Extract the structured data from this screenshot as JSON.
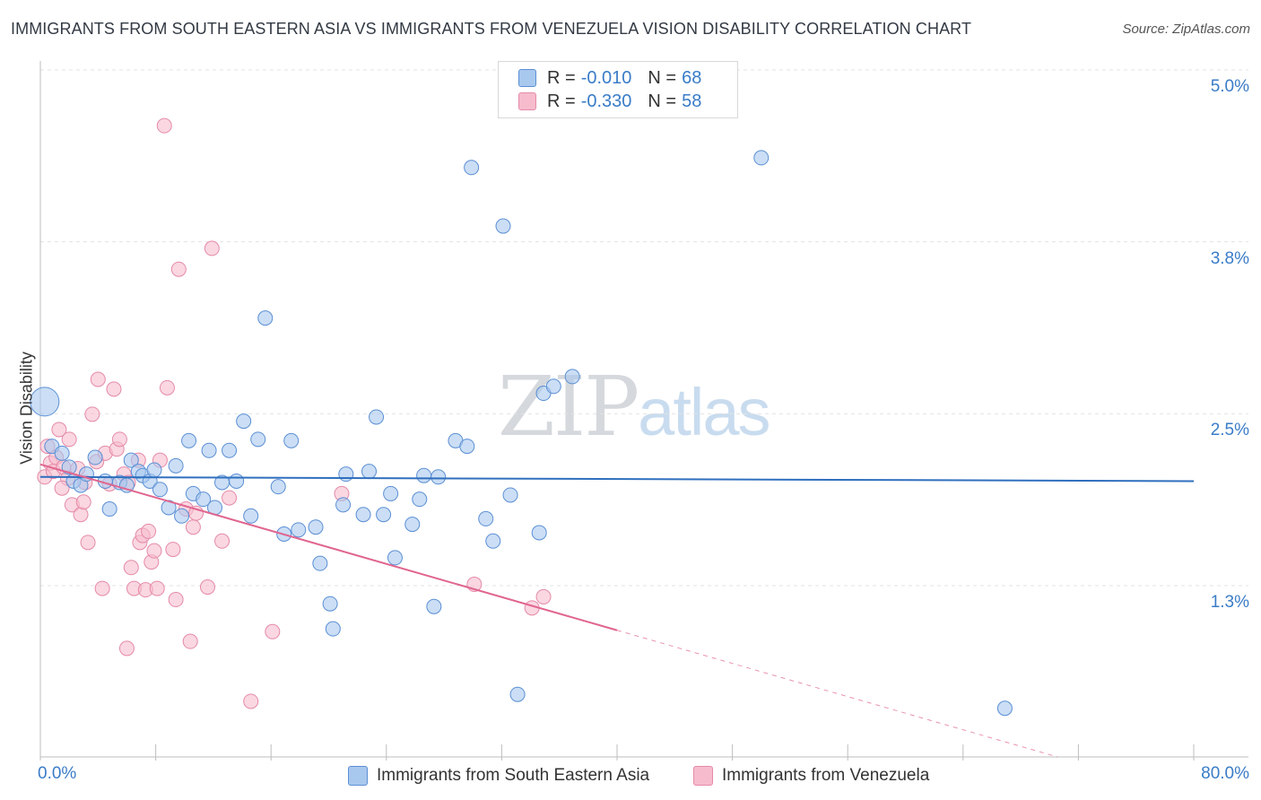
{
  "title": "IMMIGRANTS FROM SOUTH EASTERN ASIA VS IMMIGRANTS FROM VENEZUELA VISION DISABILITY CORRELATION CHART",
  "source": "Source: ZipAtlas.com",
  "watermark": {
    "zip": "ZIP",
    "atlas": "atlas"
  },
  "legend_top": [
    {
      "r_label": "R = ",
      "r_value": "-0.010",
      "n_label": "N = ",
      "n_value": "68"
    },
    {
      "r_label": "R = ",
      "r_value": "-0.330",
      "n_label": "N = ",
      "n_value": "58"
    }
  ],
  "colors": {
    "blue_fill": "#a9c8ee",
    "blue_stroke": "#5b8fd4",
    "blue_line": "#2f6fbe",
    "pink_fill": "#f6bccd",
    "pink_stroke": "#e58aa8",
    "pink_line": "#e0658f",
    "grid": "#e3e3e3",
    "tick_text": "#3a7cc7"
  },
  "chart_data": {
    "type": "scatter",
    "title": "IMMIGRANTS FROM SOUTH EASTERN ASIA VS IMMIGRANTS FROM VENEZUELA VISION DISABILITY CORRELATION CHART",
    "xlabel": "",
    "ylabel": "Vision Disability",
    "xlim": [
      0,
      80
    ],
    "ylim": [
      0.0,
      5.2
    ],
    "x_tick_labels": [
      "0.0%",
      "80.0%"
    ],
    "y_ticks": [
      1.3,
      2.5,
      3.8,
      5.0
    ],
    "y_tick_labels": [
      "1.3%",
      "2.5%",
      "3.8%",
      "5.0%"
    ],
    "grid": true,
    "legend_position": "top-center",
    "series": [
      {
        "name": "Immigrants from South Eastern Asia",
        "color": "#a9c8ee",
        "trend": {
          "x": [
            0,
            80
          ],
          "y": [
            2.08,
            2.05
          ]
        },
        "points": [
          {
            "x": 0.3,
            "y": 2.62,
            "big": true
          },
          {
            "x": 0.8,
            "y": 2.3
          },
          {
            "x": 1.5,
            "y": 2.25
          },
          {
            "x": 2.0,
            "y": 2.15
          },
          {
            "x": 2.3,
            "y": 2.05
          },
          {
            "x": 2.8,
            "y": 2.02
          },
          {
            "x": 3.2,
            "y": 2.1
          },
          {
            "x": 3.8,
            "y": 2.22
          },
          {
            "x": 4.5,
            "y": 2.05
          },
          {
            "x": 4.8,
            "y": 1.85
          },
          {
            "x": 5.5,
            "y": 2.04
          },
          {
            "x": 6.0,
            "y": 2.02
          },
          {
            "x": 6.3,
            "y": 2.2
          },
          {
            "x": 6.8,
            "y": 2.12
          },
          {
            "x": 7.1,
            "y": 2.09
          },
          {
            "x": 7.6,
            "y": 2.05
          },
          {
            "x": 7.9,
            "y": 2.13
          },
          {
            "x": 8.3,
            "y": 1.99
          },
          {
            "x": 8.9,
            "y": 1.86
          },
          {
            "x": 9.4,
            "y": 2.16
          },
          {
            "x": 9.8,
            "y": 1.8
          },
          {
            "x": 10.3,
            "y": 2.34
          },
          {
            "x": 10.6,
            "y": 1.96
          },
          {
            "x": 11.3,
            "y": 1.92
          },
          {
            "x": 11.7,
            "y": 2.27
          },
          {
            "x": 12.1,
            "y": 1.86
          },
          {
            "x": 12.6,
            "y": 2.04
          },
          {
            "x": 13.1,
            "y": 2.27
          },
          {
            "x": 13.6,
            "y": 2.05
          },
          {
            "x": 14.1,
            "y": 2.48
          },
          {
            "x": 14.6,
            "y": 1.8
          },
          {
            "x": 15.1,
            "y": 2.35
          },
          {
            "x": 15.6,
            "y": 3.22
          },
          {
            "x": 16.5,
            "y": 2.01
          },
          {
            "x": 16.9,
            "y": 1.67
          },
          {
            "x": 17.4,
            "y": 2.34
          },
          {
            "x": 17.9,
            "y": 1.7
          },
          {
            "x": 19.1,
            "y": 1.72
          },
          {
            "x": 19.4,
            "y": 1.46
          },
          {
            "x": 20.1,
            "y": 1.17
          },
          {
            "x": 20.3,
            "y": 0.99
          },
          {
            "x": 21.0,
            "y": 1.88
          },
          {
            "x": 21.2,
            "y": 2.1
          },
          {
            "x": 22.4,
            "y": 1.81
          },
          {
            "x": 22.8,
            "y": 2.12
          },
          {
            "x": 23.3,
            "y": 2.51
          },
          {
            "x": 23.8,
            "y": 1.81
          },
          {
            "x": 24.3,
            "y": 1.96
          },
          {
            "x": 24.6,
            "y": 1.5
          },
          {
            "x": 25.8,
            "y": 1.74
          },
          {
            "x": 26.3,
            "y": 1.92
          },
          {
            "x": 26.6,
            "y": 2.09
          },
          {
            "x": 27.3,
            "y": 1.15
          },
          {
            "x": 27.6,
            "y": 2.08
          },
          {
            "x": 28.8,
            "y": 2.34
          },
          {
            "x": 29.6,
            "y": 2.3
          },
          {
            "x": 29.9,
            "y": 4.3
          },
          {
            "x": 30.9,
            "y": 1.78
          },
          {
            "x": 31.4,
            "y": 1.62
          },
          {
            "x": 32.1,
            "y": 3.88
          },
          {
            "x": 32.6,
            "y": 1.95
          },
          {
            "x": 33.1,
            "y": 0.52
          },
          {
            "x": 34.6,
            "y": 1.68
          },
          {
            "x": 34.9,
            "y": 2.68
          },
          {
            "x": 35.6,
            "y": 2.73
          },
          {
            "x": 36.9,
            "y": 2.8
          },
          {
            "x": 50.0,
            "y": 4.37
          },
          {
            "x": 66.9,
            "y": 0.42
          }
        ]
      },
      {
        "name": "Immigrants from Venezuela",
        "color": "#f6bccd",
        "trend": {
          "x": [
            0,
            40
          ],
          "y": [
            2.17,
            0.98
          ]
        },
        "trend_dashed": {
          "x": [
            40,
            80
          ],
          "y": [
            0.98,
            -0.21
          ]
        },
        "points": [
          {
            "x": 0.3,
            "y": 2.08
          },
          {
            "x": 0.5,
            "y": 2.3
          },
          {
            "x": 0.7,
            "y": 2.18
          },
          {
            "x": 0.9,
            "y": 2.12
          },
          {
            "x": 1.1,
            "y": 2.22
          },
          {
            "x": 1.3,
            "y": 2.42
          },
          {
            "x": 1.6,
            "y": 2.15
          },
          {
            "x": 1.9,
            "y": 2.07
          },
          {
            "x": 2.2,
            "y": 1.88
          },
          {
            "x": 2.6,
            "y": 2.14
          },
          {
            "x": 2.8,
            "y": 1.81
          },
          {
            "x": 3.1,
            "y": 2.04
          },
          {
            "x": 3.3,
            "y": 1.61
          },
          {
            "x": 3.6,
            "y": 2.53
          },
          {
            "x": 3.9,
            "y": 2.19
          },
          {
            "x": 4.0,
            "y": 2.78
          },
          {
            "x": 4.3,
            "y": 1.28
          },
          {
            "x": 4.5,
            "y": 2.25
          },
          {
            "x": 4.8,
            "y": 2.03
          },
          {
            "x": 5.1,
            "y": 2.71
          },
          {
            "x": 5.3,
            "y": 2.28
          },
          {
            "x": 5.5,
            "y": 2.35
          },
          {
            "x": 5.8,
            "y": 2.1
          },
          {
            "x": 6.1,
            "y": 2.04
          },
          {
            "x": 6.3,
            "y": 1.43
          },
          {
            "x": 6.5,
            "y": 1.28
          },
          {
            "x": 6.8,
            "y": 2.2
          },
          {
            "x": 6.9,
            "y": 1.61
          },
          {
            "x": 7.1,
            "y": 1.66
          },
          {
            "x": 7.3,
            "y": 1.27
          },
          {
            "x": 7.5,
            "y": 1.69
          },
          {
            "x": 7.7,
            "y": 1.47
          },
          {
            "x": 7.9,
            "y": 1.55
          },
          {
            "x": 8.1,
            "y": 1.28
          },
          {
            "x": 8.3,
            "y": 2.2
          },
          {
            "x": 8.6,
            "y": 4.6
          },
          {
            "x": 8.8,
            "y": 2.72
          },
          {
            "x": 9.2,
            "y": 1.56
          },
          {
            "x": 9.4,
            "y": 1.2
          },
          {
            "x": 9.6,
            "y": 3.57
          },
          {
            "x": 10.1,
            "y": 1.85
          },
          {
            "x": 10.4,
            "y": 0.9
          },
          {
            "x": 10.6,
            "y": 1.72
          },
          {
            "x": 10.8,
            "y": 1.82
          },
          {
            "x": 11.6,
            "y": 1.29
          },
          {
            "x": 11.9,
            "y": 3.72
          },
          {
            "x": 12.6,
            "y": 1.62
          },
          {
            "x": 13.1,
            "y": 1.93
          },
          {
            "x": 14.6,
            "y": 0.47
          },
          {
            "x": 16.1,
            "y": 0.97
          },
          {
            "x": 20.9,
            "y": 1.96
          },
          {
            "x": 30.1,
            "y": 1.31
          },
          {
            "x": 34.1,
            "y": 1.14
          },
          {
            "x": 34.9,
            "y": 1.22
          },
          {
            "x": 3.0,
            "y": 1.9
          },
          {
            "x": 1.5,
            "y": 2.0
          },
          {
            "x": 2.0,
            "y": 2.35
          },
          {
            "x": 6.0,
            "y": 0.85
          }
        ]
      }
    ]
  },
  "bottom_legend": [
    {
      "label": "Immigrants from South Eastern Asia"
    },
    {
      "label": "Immigrants from Venezuela"
    }
  ]
}
